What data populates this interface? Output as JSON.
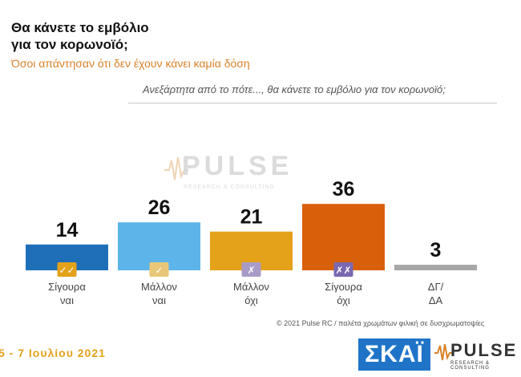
{
  "header": {
    "title_line1": "Θα κάνετε το εμβόλιο",
    "title_line2": "για τον κορωνοϊό;",
    "subtitle": "Όσοι απάντησαν ότι δεν έχουν κάνει καμία δόση",
    "question": "Ανεξάρτητα από το πότε..., θα κάνετε το εμβόλιο για τον κορωνοϊό;"
  },
  "chart_data": {
    "type": "bar",
    "categories": [
      [
        "Σίγουρα",
        "ναι"
      ],
      [
        "Μάλλον",
        "ναι"
      ],
      [
        "Μάλλον",
        "όχι"
      ],
      [
        "Σίγουρα",
        "όχι"
      ],
      [
        "ΔΓ/",
        "ΔΑ"
      ]
    ],
    "values": [
      14,
      26,
      21,
      36,
      3
    ],
    "colors": [
      "#1e6fb7",
      "#5db4e8",
      "#e3a21a",
      "#d9600b",
      "#a6a6a6"
    ],
    "badges": [
      {
        "symbol": "✓✓",
        "color": "#e3a21a"
      },
      {
        "symbol": "✓",
        "color": "#e8c878"
      },
      {
        "symbol": "✗",
        "color": "#a99bc7"
      },
      {
        "symbol": "✗✗",
        "color": "#7b68b0"
      },
      null
    ],
    "ylim": [
      0,
      40
    ],
    "grid": false,
    "legend": "none"
  },
  "watermark": {
    "text": "PULSE",
    "sub": "RESEARCH & CONSULTING"
  },
  "footer": {
    "copyright": "© 2021 Pulse RC  /  παλέτα χρωμάτων φιλική σε δυσχρωματοψίες",
    "dates": "5 - 7 Ιουλίου 2021",
    "skai_logo": "ΣΚΑΪ",
    "pulse_logo": "PULSE",
    "pulse_logo_sub": "RESEARCH & CONSULTING"
  }
}
